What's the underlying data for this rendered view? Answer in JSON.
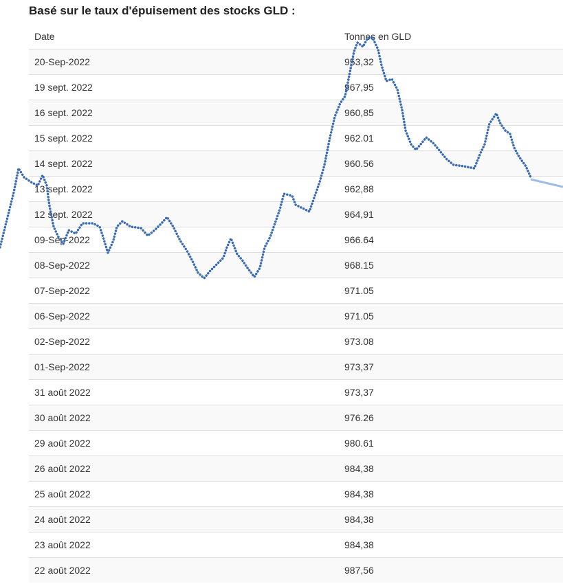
{
  "header": {
    "title": "Basé sur le taux d'épuisement des stocks GLD :"
  },
  "table": {
    "columns": [
      "Date",
      "Tonnes en GLD"
    ],
    "rows": [
      [
        "20-Sep-2022",
        "953,32"
      ],
      [
        "19 sept. 2022",
        "967,95"
      ],
      [
        "16 sept. 2022",
        "960,85"
      ],
      [
        "15 sept. 2022",
        "962.01"
      ],
      [
        "14 sept. 2022",
        "960.56"
      ],
      [
        "13 sept. 2022",
        "962,88"
      ],
      [
        "12 sept. 2022",
        "964,91"
      ],
      [
        "09-Sep-2022",
        "966.64"
      ],
      [
        "08-Sep-2022",
        "968.15"
      ],
      [
        "07-Sep-2022",
        "971.05"
      ],
      [
        "06-Sep-2022",
        "971.05"
      ],
      [
        "02-Sep-2022",
        "973.08"
      ],
      [
        "01-Sep-2022",
        "973,37"
      ],
      [
        "31 août 2022",
        "973,37"
      ],
      [
        "30 août 2022",
        "976.26"
      ],
      [
        "29 août 2022",
        "980.61"
      ],
      [
        "26 août 2022",
        "984,38"
      ],
      [
        "25 août 2022",
        "984,38"
      ],
      [
        "24 août 2022",
        "984,38"
      ],
      [
        "23 août 2022",
        "984,38"
      ],
      [
        "22 août 2022",
        "987,56"
      ]
    ]
  }
}
